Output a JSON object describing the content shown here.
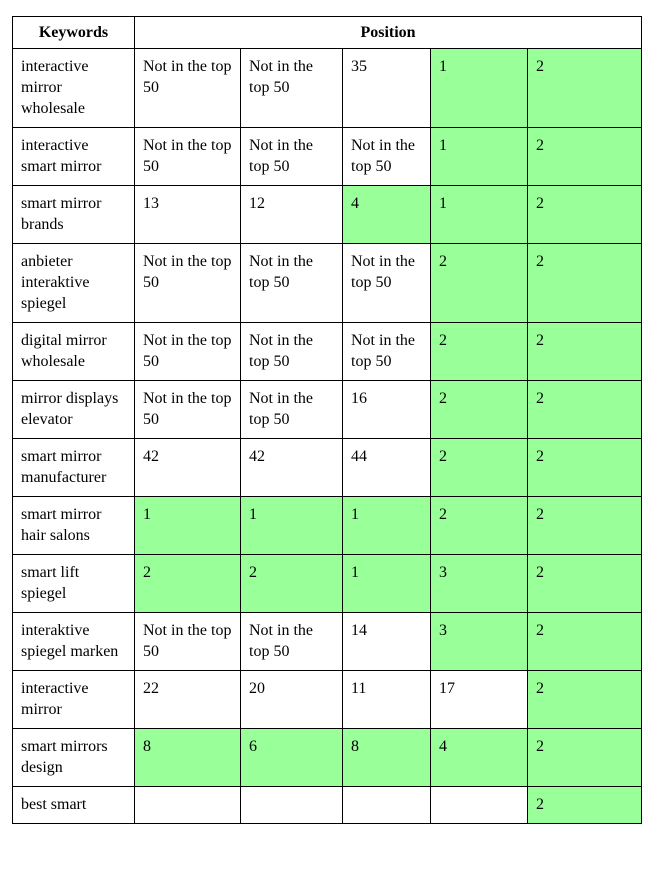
{
  "table": {
    "header": {
      "keywords_label": "Keywords",
      "position_label": "Position"
    },
    "colors": {
      "highlight": "#99ff99",
      "border": "#000000",
      "background": "#ffffff"
    },
    "position_columns": 5,
    "rows": [
      {
        "keyword": "interactive mirror wholesale",
        "cells": [
          {
            "text": "Not in the top 50",
            "highlight": false
          },
          {
            "text": "Not in the top 50",
            "highlight": false
          },
          {
            "text": "35",
            "highlight": false
          },
          {
            "text": "1",
            "highlight": true
          },
          {
            "text": "2",
            "highlight": true
          }
        ]
      },
      {
        "keyword": "interactive smart mirror",
        "cells": [
          {
            "text": "Not in the top 50",
            "highlight": false
          },
          {
            "text": "Not in the top 50",
            "highlight": false
          },
          {
            "text": "Not in the top 50",
            "highlight": false
          },
          {
            "text": "1",
            "highlight": true
          },
          {
            "text": "2",
            "highlight": true
          }
        ]
      },
      {
        "keyword": "smart mirror brands",
        "cells": [
          {
            "text": "13",
            "highlight": false
          },
          {
            "text": "12",
            "highlight": false
          },
          {
            "text": "4",
            "highlight": true
          },
          {
            "text": "1",
            "highlight": true
          },
          {
            "text": "2",
            "highlight": true
          }
        ]
      },
      {
        "keyword": "anbieter interaktive spiegel",
        "cells": [
          {
            "text": "Not in the top 50",
            "highlight": false
          },
          {
            "text": "Not in the top 50",
            "highlight": false
          },
          {
            "text": "Not in the top 50",
            "highlight": false
          },
          {
            "text": "2",
            "highlight": true
          },
          {
            "text": "2",
            "highlight": true
          }
        ]
      },
      {
        "keyword": "digital mirror wholesale",
        "cells": [
          {
            "text": "Not in the top 50",
            "highlight": false
          },
          {
            "text": "Not in the top 50",
            "highlight": false
          },
          {
            "text": "Not in the top 50",
            "highlight": false
          },
          {
            "text": "2",
            "highlight": true
          },
          {
            "text": "2",
            "highlight": true
          }
        ]
      },
      {
        "keyword": "mirror displays elevator",
        "cells": [
          {
            "text": "Not in the top 50",
            "highlight": false
          },
          {
            "text": "Not in the top 50",
            "highlight": false
          },
          {
            "text": "16",
            "highlight": false
          },
          {
            "text": "2",
            "highlight": true
          },
          {
            "text": "2",
            "highlight": true
          }
        ]
      },
      {
        "keyword": "smart mirror manufacturer",
        "cells": [
          {
            "text": "42",
            "highlight": false
          },
          {
            "text": "42",
            "highlight": false
          },
          {
            "text": "44",
            "highlight": false
          },
          {
            "text": "2",
            "highlight": true
          },
          {
            "text": "2",
            "highlight": true
          }
        ]
      },
      {
        "keyword": "smart mirror hair salons",
        "cells": [
          {
            "text": "1",
            "highlight": true
          },
          {
            "text": "1",
            "highlight": true
          },
          {
            "text": "1",
            "highlight": true
          },
          {
            "text": "2",
            "highlight": true
          },
          {
            "text": "2",
            "highlight": true
          }
        ]
      },
      {
        "keyword": "smart lift spiegel",
        "cells": [
          {
            "text": "2",
            "highlight": true
          },
          {
            "text": "2",
            "highlight": true
          },
          {
            "text": "1",
            "highlight": true
          },
          {
            "text": "3",
            "highlight": true
          },
          {
            "text": "2",
            "highlight": true
          }
        ]
      },
      {
        "keyword": "interaktive spiegel marken",
        "cells": [
          {
            "text": "Not in the top 50",
            "highlight": false
          },
          {
            "text": "Not in the top 50",
            "highlight": false
          },
          {
            "text": "14",
            "highlight": false
          },
          {
            "text": "3",
            "highlight": true
          },
          {
            "text": "2",
            "highlight": true
          }
        ]
      },
      {
        "keyword": "interactive mirror",
        "cells": [
          {
            "text": "22",
            "highlight": false
          },
          {
            "text": "20",
            "highlight": false
          },
          {
            "text": "11",
            "highlight": false
          },
          {
            "text": "17",
            "highlight": false
          },
          {
            "text": "2",
            "highlight": true
          }
        ]
      },
      {
        "keyword": "smart mirrors design",
        "cells": [
          {
            "text": "8",
            "highlight": true
          },
          {
            "text": "6",
            "highlight": true
          },
          {
            "text": "8",
            "highlight": true
          },
          {
            "text": "4",
            "highlight": true
          },
          {
            "text": "2",
            "highlight": true
          }
        ]
      },
      {
        "keyword": "best smart",
        "cells": [
          {
            "text": "",
            "highlight": false
          },
          {
            "text": "",
            "highlight": false
          },
          {
            "text": "",
            "highlight": false
          },
          {
            "text": "",
            "highlight": false
          },
          {
            "text": "2",
            "highlight": true
          }
        ]
      }
    ]
  }
}
